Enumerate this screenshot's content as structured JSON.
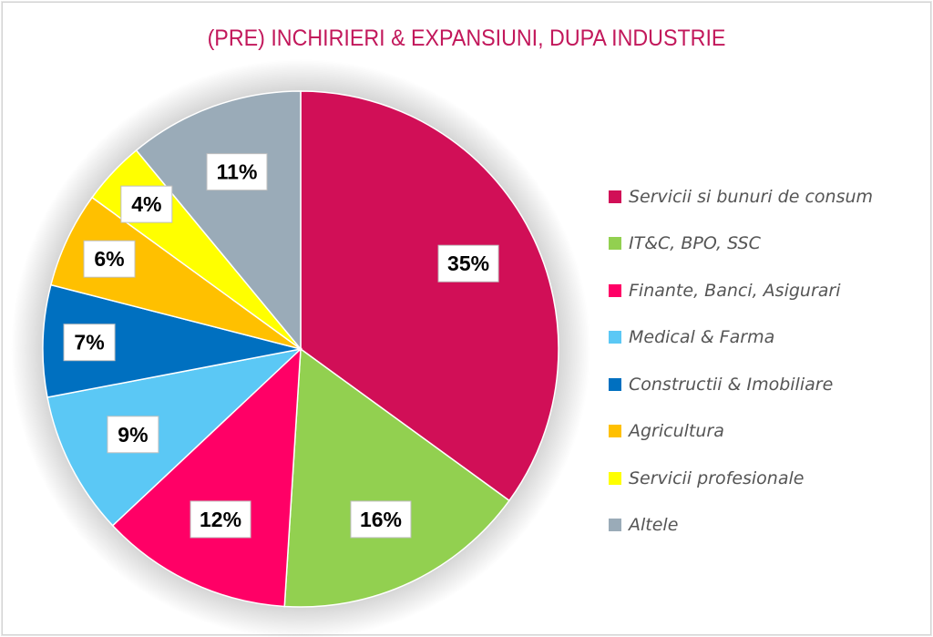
{
  "chart_data": {
    "type": "pie",
    "title": "(PRE) INCHIRIERI & EXPANSIUNI, DUPA INDUSTRIE",
    "categories": [
      "Servicii si bunuri de consum",
      "IT&C, BPO, SSC",
      "Finante, Banci, Asigurari",
      "Medical & Farma",
      "Constructii & Imobiliare",
      "Agricultura",
      "Servicii profesionale",
      "Altele"
    ],
    "values": [
      35,
      16,
      12,
      9,
      7,
      6,
      4,
      11
    ],
    "labels": [
      "35%",
      "16%",
      "12%",
      "9%",
      "7%",
      "6%",
      "4%",
      "11%"
    ],
    "colors": [
      "#d10f57",
      "#92d050",
      "#ff0066",
      "#5bc8f5",
      "#0070c0",
      "#ffc000",
      "#ffff00",
      "#9aabb8"
    ],
    "legend_position": "right",
    "start": "top, clockwise"
  }
}
